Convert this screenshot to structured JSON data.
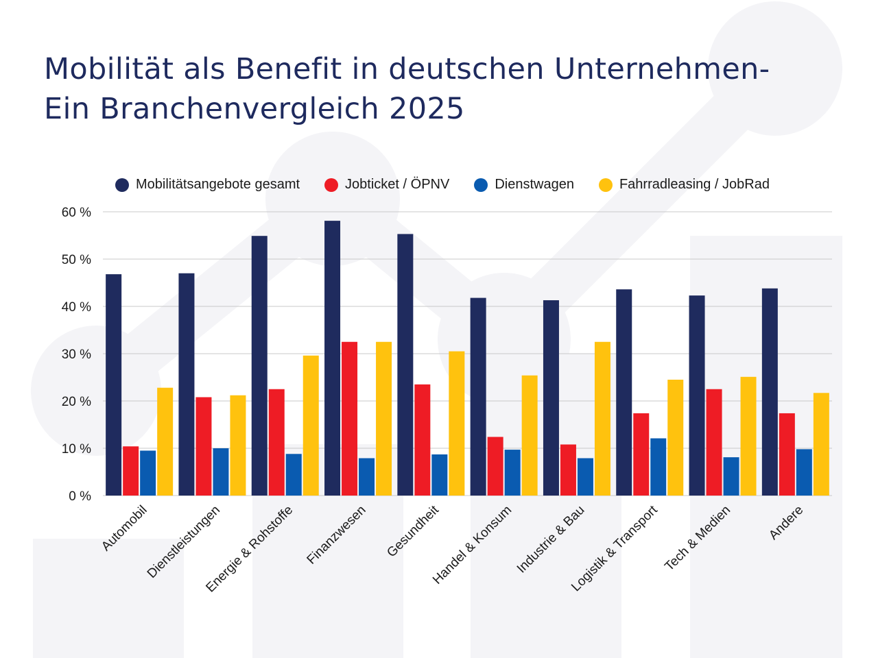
{
  "title": {
    "line1": "Mobilität als Benefit in deutschen Unternehmen-",
    "line2": "Ein Branchenvergleich 2025"
  },
  "colors": {
    "title": "#1e2a5e",
    "background_shapes": "#f4f4f7",
    "grid": "#c8c8c8"
  },
  "chart_data": {
    "type": "bar",
    "title": "Mobilität als Benefit in deutschen Unternehmen- Ein Branchenvergleich 2025",
    "xlabel": "",
    "ylabel": "",
    "ylim": [
      0,
      60
    ],
    "yticks": [
      0,
      10,
      20,
      30,
      40,
      50,
      60
    ],
    "ytick_labels": [
      "0 %",
      "10 %",
      "20 %",
      "30 %",
      "40 %",
      "50 %",
      "60 %"
    ],
    "grid": true,
    "legend_position": "top",
    "categories": [
      "Automobil",
      "Dienstleistungen",
      "Energie & Rohstoffe",
      "Finanzwesen",
      "Gesundheit",
      "Handel & Konsum",
      "Industrie & Bau",
      "Logistik & Transport",
      "Tech & Medien",
      "Andere"
    ],
    "series": [
      {
        "name": "Mobilitätsangebote gesamt",
        "color": "#1f2b5e",
        "values": [
          46.8,
          47.0,
          54.9,
          58.1,
          55.3,
          41.8,
          41.3,
          43.6,
          42.3,
          43.8
        ]
      },
      {
        "name": "Jobticket / ÖPNV",
        "color": "#ee1c25",
        "values": [
          10.4,
          20.8,
          22.5,
          32.5,
          23.5,
          12.4,
          10.8,
          17.4,
          22.5,
          17.4
        ]
      },
      {
        "name": "Dienstwagen",
        "color": "#0a5bb0",
        "values": [
          9.5,
          10.0,
          8.8,
          7.9,
          8.7,
          9.7,
          7.9,
          12.1,
          8.1,
          9.8
        ]
      },
      {
        "name": "Fahrradleasing / JobRad",
        "color": "#ffc20e",
        "values": [
          22.8,
          21.2,
          29.6,
          32.5,
          30.5,
          25.4,
          32.5,
          24.5,
          25.1,
          21.7
        ]
      }
    ]
  }
}
